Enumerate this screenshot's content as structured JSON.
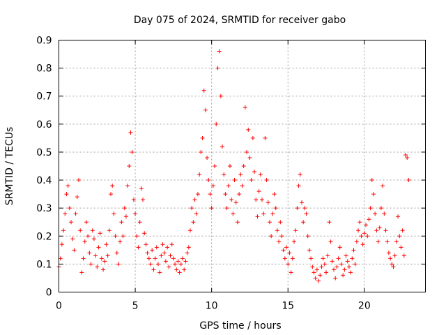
{
  "chart_data": {
    "type": "scatter",
    "title": "Day 075 of 2024, SRMTID for receiver gabo",
    "xlabel": "GPS time / hours",
    "ylabel": "SRMTID / TECUs",
    "xlim": [
      0,
      24
    ],
    "ylim": [
      0,
      0.9
    ],
    "xticks": [
      0,
      5,
      10,
      15,
      20
    ],
    "xtick_labels": [
      "0",
      "5",
      "10",
      "15",
      "20"
    ],
    "yticks": [
      0,
      0.1,
      0.2,
      0.3,
      0.4,
      0.5,
      0.6,
      0.7,
      0.8,
      0.9
    ],
    "ytick_labels": [
      "0",
      "0.1",
      "0.2",
      "0.3",
      "0.4",
      "0.5",
      "0.6",
      "0.7",
      "0.8",
      "0.9"
    ],
    "grid": true,
    "marker": "+",
    "color": "#ff0000",
    "series": [
      {
        "name": "SRMTID",
        "points": [
          [
            0.0,
            0.09
          ],
          [
            0.1,
            0.12
          ],
          [
            0.2,
            0.17
          ],
          [
            0.3,
            0.22
          ],
          [
            0.4,
            0.28
          ],
          [
            0.5,
            0.35
          ],
          [
            0.6,
            0.38
          ],
          [
            0.7,
            0.3
          ],
          [
            0.8,
            0.25
          ],
          [
            0.9,
            0.19
          ],
          [
            1.0,
            0.15
          ],
          [
            1.1,
            0.28
          ],
          [
            1.2,
            0.34
          ],
          [
            1.3,
            0.4
          ],
          [
            1.4,
            0.22
          ],
          [
            1.5,
            0.07
          ],
          [
            1.6,
            0.12
          ],
          [
            1.7,
            0.18
          ],
          [
            1.8,
            0.25
          ],
          [
            1.9,
            0.2
          ],
          [
            2.0,
            0.14
          ],
          [
            2.1,
            0.1
          ],
          [
            2.2,
            0.22
          ],
          [
            2.3,
            0.19
          ],
          [
            2.4,
            0.13
          ],
          [
            2.5,
            0.09
          ],
          [
            2.6,
            0.16
          ],
          [
            2.7,
            0.21
          ],
          [
            2.8,
            0.12
          ],
          [
            2.9,
            0.08
          ],
          [
            3.0,
            0.11
          ],
          [
            3.1,
            0.17
          ],
          [
            3.2,
            0.13
          ],
          [
            3.3,
            0.22
          ],
          [
            3.4,
            0.35
          ],
          [
            3.5,
            0.38
          ],
          [
            3.6,
            0.28
          ],
          [
            3.7,
            0.2
          ],
          [
            3.8,
            0.14
          ],
          [
            3.9,
            0.1
          ],
          [
            4.0,
            0.18
          ],
          [
            4.1,
            0.25
          ],
          [
            4.2,
            0.2
          ],
          [
            4.3,
            0.3
          ],
          [
            4.4,
            0.27
          ],
          [
            4.5,
            0.38
          ],
          [
            4.6,
            0.45
          ],
          [
            4.7,
            0.57
          ],
          [
            4.8,
            0.5
          ],
          [
            4.9,
            0.33
          ],
          [
            5.0,
            0.28
          ],
          [
            5.1,
            0.2
          ],
          [
            5.2,
            0.16
          ],
          [
            5.3,
            0.25
          ],
          [
            5.4,
            0.37
          ],
          [
            5.5,
            0.33
          ],
          [
            5.6,
            0.21
          ],
          [
            5.7,
            0.17
          ],
          [
            5.8,
            0.14
          ],
          [
            5.9,
            0.12
          ],
          [
            6.0,
            0.1
          ],
          [
            6.1,
            0.15
          ],
          [
            6.2,
            0.08
          ],
          [
            6.3,
            0.12
          ],
          [
            6.4,
            0.16
          ],
          [
            6.5,
            0.1
          ],
          [
            6.6,
            0.07
          ],
          [
            6.7,
            0.13
          ],
          [
            6.8,
            0.17
          ],
          [
            6.9,
            0.14
          ],
          [
            7.0,
            0.11
          ],
          [
            7.1,
            0.16
          ],
          [
            7.2,
            0.09
          ],
          [
            7.3,
            0.13
          ],
          [
            7.4,
            0.17
          ],
          [
            7.5,
            0.12
          ],
          [
            7.6,
            0.1
          ],
          [
            7.7,
            0.08
          ],
          [
            7.8,
            0.11
          ],
          [
            7.9,
            0.07
          ],
          [
            8.0,
            0.1
          ],
          [
            8.1,
            0.12
          ],
          [
            8.2,
            0.08
          ],
          [
            8.3,
            0.11
          ],
          [
            8.4,
            0.14
          ],
          [
            8.5,
            0.16
          ],
          [
            8.6,
            0.22
          ],
          [
            8.7,
            0.3
          ],
          [
            8.8,
            0.25
          ],
          [
            8.9,
            0.33
          ],
          [
            9.0,
            0.28
          ],
          [
            9.1,
            0.35
          ],
          [
            9.2,
            0.42
          ],
          [
            9.3,
            0.5
          ],
          [
            9.4,
            0.55
          ],
          [
            9.5,
            0.72
          ],
          [
            9.6,
            0.65
          ],
          [
            9.7,
            0.48
          ],
          [
            9.8,
            0.4
          ],
          [
            9.9,
            0.35
          ],
          [
            10.0,
            0.3
          ],
          [
            10.1,
            0.38
          ],
          [
            10.2,
            0.45
          ],
          [
            10.3,
            0.6
          ],
          [
            10.4,
            0.8
          ],
          [
            10.5,
            0.86
          ],
          [
            10.6,
            0.7
          ],
          [
            10.7,
            0.52
          ],
          [
            10.8,
            0.42
          ],
          [
            10.9,
            0.35
          ],
          [
            11.0,
            0.3
          ],
          [
            11.1,
            0.38
          ],
          [
            11.2,
            0.45
          ],
          [
            11.3,
            0.33
          ],
          [
            11.4,
            0.28
          ],
          [
            11.5,
            0.4
          ],
          [
            11.6,
            0.32
          ],
          [
            11.7,
            0.25
          ],
          [
            11.8,
            0.35
          ],
          [
            11.9,
            0.42
          ],
          [
            12.0,
            0.38
          ],
          [
            12.1,
            0.45
          ],
          [
            12.2,
            0.66
          ],
          [
            12.3,
            0.5
          ],
          [
            12.4,
            0.58
          ],
          [
            12.5,
            0.48
          ],
          [
            12.6,
            0.4
          ],
          [
            12.7,
            0.55
          ],
          [
            12.8,
            0.43
          ],
          [
            12.9,
            0.33
          ],
          [
            13.0,
            0.27
          ],
          [
            13.1,
            0.36
          ],
          [
            13.2,
            0.42
          ],
          [
            13.3,
            0.33
          ],
          [
            13.4,
            0.28
          ],
          [
            13.5,
            0.55
          ],
          [
            13.6,
            0.4
          ],
          [
            13.7,
            0.32
          ],
          [
            13.8,
            0.25
          ],
          [
            13.9,
            0.2
          ],
          [
            14.0,
            0.28
          ],
          [
            14.1,
            0.35
          ],
          [
            14.2,
            0.3
          ],
          [
            14.3,
            0.22
          ],
          [
            14.4,
            0.18
          ],
          [
            14.5,
            0.25
          ],
          [
            14.6,
            0.2
          ],
          [
            14.7,
            0.15
          ],
          [
            14.8,
            0.12
          ],
          [
            14.9,
            0.16
          ],
          [
            15.0,
            0.1
          ],
          [
            15.1,
            0.14
          ],
          [
            15.2,
            0.07
          ],
          [
            15.3,
            0.12
          ],
          [
            15.4,
            0.18
          ],
          [
            15.5,
            0.22
          ],
          [
            15.6,
            0.3
          ],
          [
            15.7,
            0.38
          ],
          [
            15.8,
            0.42
          ],
          [
            15.9,
            0.32
          ],
          [
            16.0,
            0.25
          ],
          [
            16.1,
            0.3
          ],
          [
            16.2,
            0.28
          ],
          [
            16.3,
            0.2
          ],
          [
            16.4,
            0.15
          ],
          [
            16.5,
            0.12
          ],
          [
            16.6,
            0.09
          ],
          [
            16.7,
            0.07
          ],
          [
            16.8,
            0.05
          ],
          [
            16.9,
            0.08
          ],
          [
            17.0,
            0.04
          ],
          [
            17.1,
            0.06
          ],
          [
            17.2,
            0.09
          ],
          [
            17.3,
            0.12
          ],
          [
            17.4,
            0.1
          ],
          [
            17.5,
            0.07
          ],
          [
            17.6,
            0.13
          ],
          [
            17.7,
            0.25
          ],
          [
            17.8,
            0.18
          ],
          [
            17.9,
            0.11
          ],
          [
            18.0,
            0.08
          ],
          [
            18.1,
            0.05
          ],
          [
            18.2,
            0.09
          ],
          [
            18.3,
            0.12
          ],
          [
            18.4,
            0.16
          ],
          [
            18.5,
            0.1
          ],
          [
            18.6,
            0.06
          ],
          [
            18.7,
            0.08
          ],
          [
            18.8,
            0.13
          ],
          [
            18.9,
            0.11
          ],
          [
            19.0,
            0.09
          ],
          [
            19.1,
            0.07
          ],
          [
            19.2,
            0.12
          ],
          [
            19.3,
            0.15
          ],
          [
            19.4,
            0.1
          ],
          [
            19.5,
            0.18
          ],
          [
            19.6,
            0.22
          ],
          [
            19.7,
            0.25
          ],
          [
            19.8,
            0.2
          ],
          [
            19.9,
            0.17
          ],
          [
            20.0,
            0.21
          ],
          [
            20.1,
            0.24
          ],
          [
            20.2,
            0.2
          ],
          [
            20.3,
            0.26
          ],
          [
            20.4,
            0.3
          ],
          [
            20.5,
            0.4
          ],
          [
            20.6,
            0.35
          ],
          [
            20.7,
            0.28
          ],
          [
            20.8,
            0.22
          ],
          [
            20.9,
            0.18
          ],
          [
            21.0,
            0.23
          ],
          [
            21.1,
            0.3
          ],
          [
            21.2,
            0.38
          ],
          [
            21.3,
            0.28
          ],
          [
            21.4,
            0.22
          ],
          [
            21.5,
            0.18
          ],
          [
            21.6,
            0.14
          ],
          [
            21.7,
            0.12
          ],
          [
            21.8,
            0.1
          ],
          [
            21.9,
            0.09
          ],
          [
            22.0,
            0.13
          ],
          [
            22.1,
            0.18
          ],
          [
            22.2,
            0.27
          ],
          [
            22.3,
            0.2
          ],
          [
            22.4,
            0.16
          ],
          [
            22.5,
            0.22
          ],
          [
            22.6,
            0.13
          ],
          [
            22.7,
            0.49
          ],
          [
            22.8,
            0.48
          ],
          [
            22.9,
            0.4
          ]
        ]
      }
    ]
  }
}
